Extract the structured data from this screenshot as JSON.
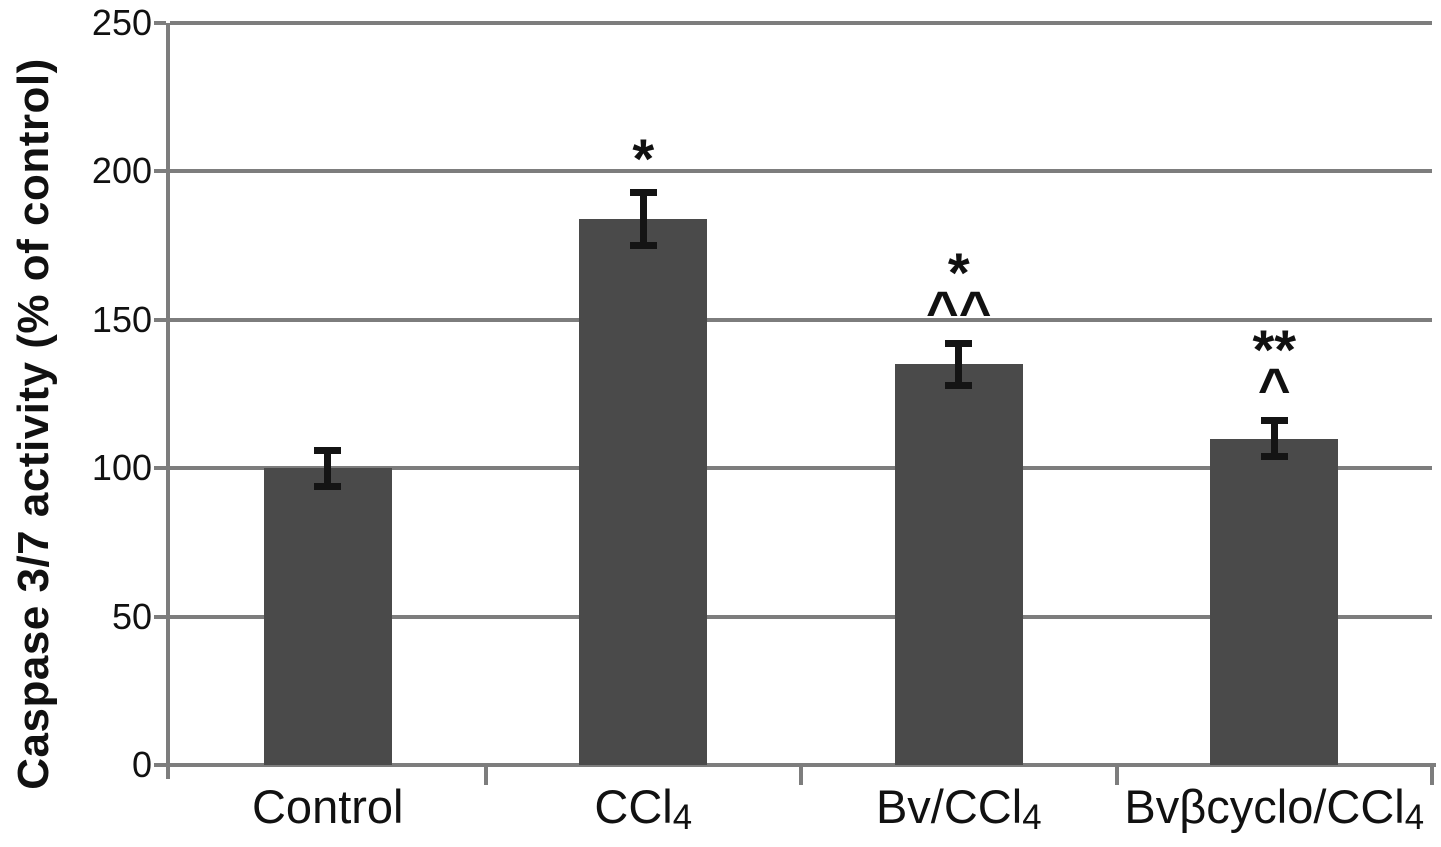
{
  "figure": {
    "background_color": "#ffffff",
    "text_color": "#111111"
  },
  "chart_data": {
    "type": "bar",
    "title": "",
    "xlabel": "",
    "ylabel": "Caspase 3/7 activity (% of control)",
    "ylim": [
      0,
      250
    ],
    "yticks": [
      0,
      50,
      100,
      150,
      200,
      250
    ],
    "grid": true,
    "legend": false,
    "categories": [
      "Control",
      "CCl4",
      "Bv/CCl4",
      "Bvβcyclo/CCl4"
    ],
    "category_labels": [
      {
        "text": "Control",
        "sub": ""
      },
      {
        "text": "CCl",
        "sub": "4"
      },
      {
        "text": "Bv/CCl",
        "sub": "4"
      },
      {
        "text": "Bvβcyclo/CCl",
        "sub": "4"
      }
    ],
    "values": [
      100,
      184,
      135,
      110
    ],
    "error_bars": [
      6,
      9,
      7,
      6
    ],
    "significance_markers": [
      [],
      [
        "*"
      ],
      [
        "*",
        "^^"
      ],
      [
        "**",
        "^"
      ]
    ],
    "bar_color": "#4a4a4a",
    "grid_color": "#7d7d7d",
    "axis_color": "#7d7d7d",
    "error_bar_color": "#141414"
  }
}
